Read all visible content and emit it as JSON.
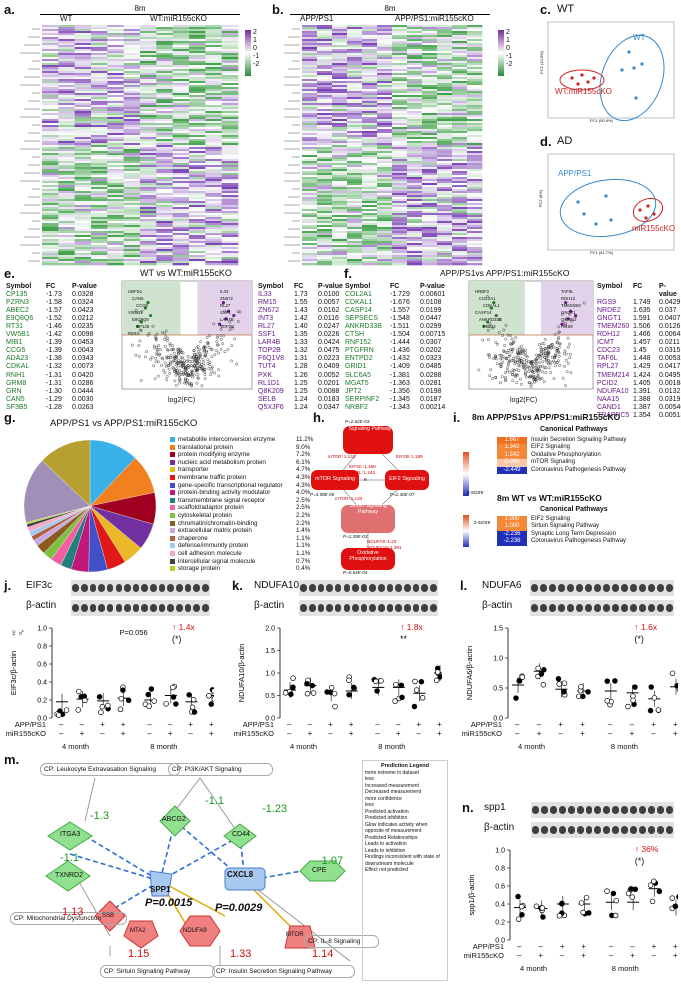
{
  "panels": {
    "a": {
      "label": "a.",
      "header": "8m",
      "groups": [
        "WT",
        "WT:miR155cKO"
      ],
      "scale": [
        "2",
        "1",
        "0",
        "-1",
        "-2"
      ]
    },
    "b": {
      "label": "b.",
      "header": "8m",
      "groups": [
        "APP/PS1",
        "APP/PS1:miR155cKO"
      ],
      "scale": [
        "2",
        "1",
        "0",
        "-1",
        "-2"
      ]
    },
    "c": {
      "label": "c.",
      "title": "WT",
      "ellipse_labels": [
        "WT",
        "WT:miR155cKO"
      ],
      "xaxis": "PC1 (50.9%)",
      "yaxis": "PC2 (10.6%)"
    },
    "d": {
      "label": "d.",
      "title": "AD",
      "ellipse_labels": [
        "APP/PS1",
        "miR155cKO"
      ],
      "xaxis": "PC1 (61.7%)",
      "yaxis": "PC2 (8%)"
    },
    "e": {
      "label": "e.",
      "title": "WT vs WT:miR155cKO",
      "xlabel": "log2(FC)",
      "ylabel": "-log10(P)",
      "headers": [
        "Symbol",
        "FC",
        "P-value"
      ],
      "down": [
        [
          "CP135",
          "-1.73",
          "0.0328"
        ],
        [
          "PZRN3",
          "-1.58",
          "0.0324"
        ],
        [
          "ABEC2",
          "-1.57",
          "0.0423"
        ],
        [
          "E9Q8Q6",
          "-1.52",
          "0.0212"
        ],
        [
          "RT31",
          "-1.46",
          "0.0235"
        ],
        [
          "VW5B1",
          "-1.42",
          "0.0098"
        ],
        [
          "MIB1",
          "-1.39",
          "0.0453"
        ],
        [
          "CCG5",
          "-1.39",
          "0.0043"
        ],
        [
          "ADA23",
          "-1.38",
          "0.0343"
        ],
        [
          "CDKAL",
          "-1.32",
          "0.0073"
        ],
        [
          "RNH1",
          "-1.31",
          "0.0420"
        ],
        [
          "GRM8",
          "-1.31",
          "0.0286"
        ],
        [
          "GRN",
          "-1.30",
          "0.0444"
        ],
        [
          "CAN5",
          "-1.29",
          "0.0030"
        ],
        [
          "SF3B5",
          "-1.28",
          "0.0263"
        ]
      ],
      "up": [
        [
          "IL33",
          "1.73",
          "0.0100"
        ],
        [
          "RM15",
          "1.55",
          "0.0057"
        ],
        [
          "ZN672",
          "1.43",
          "0.0162"
        ],
        [
          "INT3",
          "1.42",
          "0.0116"
        ],
        [
          "RL27",
          "1.40",
          "0.0247"
        ],
        [
          "SSF1",
          "1.35",
          "0.0226"
        ],
        [
          "LAR4B",
          "1.33",
          "0.0424"
        ],
        [
          "TOP2B",
          "1.32",
          "0.0475"
        ],
        [
          "F6Q1V8",
          "1.31",
          "0.0223"
        ],
        [
          "TUT4",
          "1.28",
          "0.0409"
        ],
        [
          "PXK",
          "1.26",
          "0.0052"
        ],
        [
          "RL1D1",
          "1.25",
          "0.0201"
        ],
        [
          "Q8K209",
          "1.25",
          "0.0088"
        ],
        [
          "SELB",
          "1.24",
          "0.0183"
        ],
        [
          "Q5XJF6",
          "1.24",
          "0.0347"
        ]
      ],
      "point_labels": [
        "UBFD1",
        "CAN5",
        "CCG5",
        "VW5B1",
        "E9Q8Q6",
        "CP135",
        "RM15",
        "IL33",
        "ZN672",
        "RL27",
        "SSF1",
        "LAR4B",
        "TOP2B"
      ]
    },
    "f": {
      "label": "f.",
      "title": "APP/PS1vs APP/PS1:miR155cKO",
      "xlabel": "log2(FC)",
      "ylabel": "-log10(P)",
      "headers": [
        "Symbol",
        "FC",
        "P-value"
      ],
      "down": [
        [
          "COL2A1",
          "-1.729",
          "0.00601"
        ],
        [
          "CDKAL1",
          "-1.676",
          "0.0108"
        ],
        [
          "CASP14",
          "-1.557",
          "0.0199"
        ],
        [
          "SEPSECS",
          "-1.548",
          "0.0447"
        ],
        [
          "ANKRD33B",
          "-1.511",
          "0.0299"
        ],
        [
          "CTSH",
          "-1.504",
          "0.00715"
        ],
        [
          "RNF152",
          "-1.444",
          "0.0307"
        ],
        [
          "PTGFRN",
          "-1.436",
          "0.0202"
        ],
        [
          "ENTPD2",
          "-1.432",
          "0.0323"
        ],
        [
          "GRID1",
          "-1.409",
          "0.0485"
        ],
        [
          "SLC6A5",
          "-1.381",
          "0.0288"
        ],
        [
          "MGAT5",
          "-1.363",
          "0.0281"
        ],
        [
          "JPT2",
          "-1.356",
          "0.0198"
        ],
        [
          "SERPINF2",
          "-1.345",
          "0.0187"
        ],
        [
          "NRBF2",
          "-1.343",
          "0.00214"
        ]
      ],
      "up": [
        [
          "RGS9",
          "1.749",
          "0.0429"
        ],
        [
          "NRDE2",
          "1.635",
          "0.037"
        ],
        [
          "GNGT1",
          "1.591",
          "0.0407"
        ],
        [
          "TMEM260",
          "1.506",
          "0.0126"
        ],
        [
          "RDH12",
          "1.466",
          "0.00643"
        ],
        [
          "ICMT",
          "1.457",
          "0.0211"
        ],
        [
          "CDC23",
          "1.45",
          "0.0315"
        ],
        [
          "TAF6L",
          "1.448",
          "0.00532"
        ],
        [
          "RPL27",
          "1.429",
          "0.0417"
        ],
        [
          "TMEM214",
          "1.424",
          "0.0495"
        ],
        [
          "PCID2",
          "1.405",
          "0.00188"
        ],
        [
          "NDUFA10",
          "1.391",
          "0.0132"
        ],
        [
          "NAA15",
          "1.388",
          "0.0319"
        ],
        [
          "CAND1",
          "1.387",
          "0.00546"
        ],
        [
          "TRAPPC5",
          "1.354",
          "0.00513"
        ]
      ],
      "point_labels": [
        "NRBF2",
        "COL2A1",
        "CDKAL1",
        "CASP14",
        "ANKRD33B",
        "PCID2",
        "TAF6L",
        "RDH12",
        "TMEM260",
        "GNGT1",
        "QIU4N2",
        "RGS9"
      ]
    },
    "g": {
      "label": "g.",
      "title": "APP/PS1 vs APP/PS1:miR155cKO",
      "legend": [
        [
          "metabolite interconversion enzyme",
          "11.2%",
          "#3ab0e8"
        ],
        [
          "translational protein",
          "9.0%",
          "#f08020"
        ],
        [
          "protein modifying enzyme",
          "7.2%",
          "#a00020"
        ],
        [
          "nucleic acid metabolism protein",
          "6.1%",
          "#7030a0"
        ],
        [
          "transporter",
          "4.7%",
          "#e8b828"
        ],
        [
          "membrane traffic protein",
          "4.3%",
          "#e01818"
        ],
        [
          "gene-specific transcriptional regulator",
          "4.3%",
          "#4050c8"
        ],
        [
          "protein-binding activity modulator",
          "4.0%",
          "#c01878"
        ],
        [
          "transmembrane signal receptor",
          "2.5%",
          "#208080"
        ],
        [
          "scaffold/adaptor protein",
          "2.5%",
          "#f060a0"
        ],
        [
          "cytoskeletal protein",
          "2.2%",
          "#80c040"
        ],
        [
          "chromatin/chromatin-binding",
          "2.2%",
          "#8a5a20"
        ],
        [
          "extracellular matrix protein",
          "1.4%",
          "#c8a8e0"
        ],
        [
          "chaperone",
          "1.1%",
          "#b06040"
        ],
        [
          "defense/immunity protein",
          "1.1%",
          "#a0c8f0"
        ],
        [
          "cell adhesion molecule",
          "1.1%",
          "#f8a8c0"
        ],
        [
          "intercellular signal molecule",
          "0.7%",
          "#404040"
        ],
        [
          "storage protein",
          "0.4%",
          "#b8d020"
        ]
      ],
      "slices": [
        11.2,
        9.0,
        7.2,
        6.1,
        4.7,
        4.3,
        4.3,
        4.0,
        2.5,
        2.5,
        2.2,
        2.2,
        1.4,
        1.1,
        1.1,
        1.1,
        0.7,
        0.4,
        15.0,
        12.0
      ]
    },
    "h": {
      "label": "h.",
      "nodes": [
        "Insulin Secretion Signaling Pathway",
        "EIF2 Signaling",
        "mTOR Signaling",
        "Sirtuin Signaling Pathway",
        "Oxidative Phosphorylation"
      ],
      "pvals": [
        "P=2.62E-03",
        "P=2.40E-07",
        "P=4.58E-06",
        "P=1.39E-03",
        "P=5.64E-04"
      ],
      "edges": [
        "mTOR↑1.133",
        "EIF2B↑1.189",
        "EIF3C↑1.366",
        "EIF3L↑1.242",
        "9",
        "mTOR↑1.133",
        "NDUFA6↑1.23",
        "NDUFA10↑1.391"
      ]
    },
    "i": {
      "label": "i.",
      "t1": "8m APP/PS1vs APP/PS1:miR155cKO",
      "h1": "Canonical Pathways",
      "rows1": [
        [
          "1.667",
          "Insulin Secretion Signaling Pathway",
          "#f07020"
        ],
        [
          "1.342",
          "EIF2 Signaling",
          "#f48838"
        ],
        [
          "1.342",
          "Oxidative Phosphorylation",
          "#f48838"
        ],
        [
          "0.000",
          "mTOR Signaling",
          "#f8c8a8"
        ],
        [
          "-2.449",
          "Coronavirus Pathogenesis Pathway",
          "#2030b8"
        ]
      ],
      "t2": "8m WT vs WT:miR155cKO",
      "h2": "Canonical Pathways",
      "rows2": [
        [
          "1.000",
          "EIF2 Signaling",
          "#f48838"
        ],
        [
          "1.000",
          "Sirtuin Signaling Pathway",
          "#f48838"
        ],
        [
          "-2.236",
          "Synaptic Long Term Depression",
          "#2030b8"
        ],
        [
          "-2.236",
          "Coronavirus Pathogenesis Pathway",
          "#2030b8"
        ]
      ],
      "zscore": "z-score"
    },
    "j": {
      "label": "j.",
      "blot1": "EIF3c",
      "blot2": "β-actin",
      "ylabel": "EIF3c/β-actin",
      "yticks": [
        "1.0",
        "0.8",
        "0.6",
        "0.4",
        "0.2",
        "0.0"
      ],
      "pval": "P=0.056",
      "fold": "1.4x",
      "stars": "(*)",
      "row1": "APP/PS1",
      "row2": "miR155cKO",
      "g1": "4 month",
      "g2": "8 month",
      "means": [
        0.18,
        0.21,
        0.19,
        0.22,
        0.2,
        0.25,
        0.18,
        0.25
      ],
      "sex": "♀♂"
    },
    "k": {
      "label": "k.",
      "blot1": "NDUFA10",
      "blot2": "β-actin",
      "ylabel": "NDUFA10/β-actin",
      "yticks": [
        "2.0",
        "1.5",
        "1.0",
        "0.5",
        "0.0"
      ],
      "fold": "1.8x",
      "stars": "**",
      "row1": "APP/PS1",
      "row2": "miR155cKO",
      "g1": "4 month",
      "g2": "8 month",
      "means": [
        0.62,
        0.72,
        0.55,
        0.6,
        0.68,
        0.68,
        0.55,
        1.0
      ]
    },
    "l": {
      "label": "l.",
      "blot1": "NDUFA6",
      "blot2": "β-actin",
      "ylabel": "NDUFA6/β-actin",
      "yticks": [
        "1.5",
        "1.0",
        "0.5",
        "0.0"
      ],
      "fold": "1.6x",
      "stars": "(*)",
      "row1": "APP/PS1",
      "row2": "miR155cKO",
      "g1": "4 month",
      "g2": "8 month",
      "means": [
        0.55,
        0.78,
        0.48,
        0.45,
        0.45,
        0.42,
        0.32,
        0.52
      ]
    },
    "m": {
      "label": "m.",
      "cp": [
        "CP: Leukocyte Extravasation Signaling",
        "CP: PI3K/AKT Signaling",
        "CP: Mitochondrial Dysfunction",
        "CP: Sirtuin Signaling Pathway",
        "CP: Insulin Secretion Signaling Pathway",
        "CP: IL-8 Signaling"
      ],
      "nodes": [
        "ITGA3",
        "ABCG2",
        "CD44",
        "TXNRD2",
        "SPP1",
        "CXCL8",
        "CPE",
        "SSB",
        "MTA2",
        "NDUFA9",
        "MTOR"
      ],
      "values": [
        "-1.3",
        "-1.1",
        "-1.23",
        "-1.1",
        "-1.07",
        "1.13",
        "1.15",
        "1.33",
        "1.14"
      ],
      "pvals": [
        "P=0.0015",
        "P=0.0029"
      ],
      "legend_title": "Prediction Legend",
      "legend": [
        "more extreme in dataset",
        "less",
        "Increased measurement",
        "Decreased measurement",
        "more confidence",
        "less",
        "Predicted activation",
        "Predicted inhibition",
        "Glow indicates activity when opposite of measurement",
        "Predicted Relationships",
        "Leads to activation",
        "Leads to inhibition",
        "Findings inconsistent with state of downstream molecule",
        "Effect not predicted"
      ]
    },
    "n": {
      "label": "n.",
      "blot1": "spp1",
      "blot2": "β-actin",
      "ylabel": "spp1/β-actin",
      "yticks": [
        "1.0",
        "0.8",
        "0.6",
        "0.4",
        "0.2",
        "0.0"
      ],
      "fold": "36%",
      "stars": "(*)",
      "row1": "APP/PS1",
      "row2": "miR155cKO",
      "g1": "4 month",
      "g2": "8 month",
      "means": [
        0.36,
        0.35,
        0.4,
        0.4,
        0.42,
        0.42,
        0.57,
        0.36
      ]
    }
  }
}
